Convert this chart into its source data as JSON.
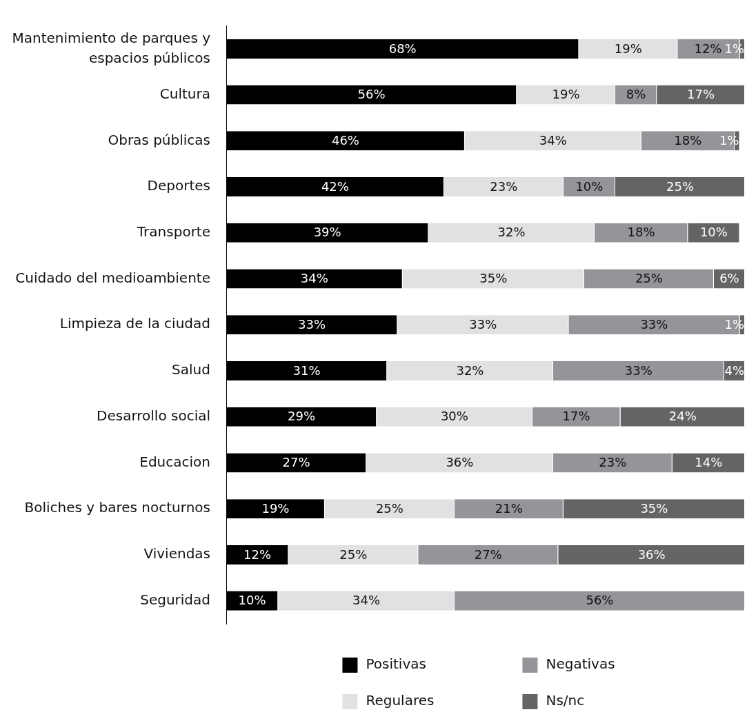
{
  "chart_data": {
    "type": "bar",
    "orientation": "horizontal",
    "stacked": true,
    "categories": [
      "Mantenimiento de parques y espacios públicos",
      "Cultura",
      "Obras públicas",
      "Deportes",
      "Transporte",
      "Cuidado del medioambiente",
      "Limpieza de la ciudad",
      "Salud",
      "Desarrollo social",
      "Educacion",
      "Boliches y bares nocturnos",
      "Viviendas",
      "Seguridad"
    ],
    "series": [
      {
        "name": "Positivas",
        "color": "#000000",
        "values": [
          68,
          56,
          46,
          42,
          39,
          34,
          33,
          31,
          29,
          27,
          19,
          12,
          10
        ],
        "value_labels": [
          "68%",
          "56%",
          "46%",
          "42%",
          "39%",
          "34%",
          "33%",
          "31%",
          "29%",
          "27%",
          "19%",
          "12%",
          "10%"
        ]
      },
      {
        "name": "Regulares",
        "color": "#e0e1e3",
        "values": [
          19,
          19,
          34,
          23,
          32,
          35,
          33,
          32,
          30,
          36,
          25,
          25,
          34
        ],
        "value_labels": [
          "19%",
          "19%",
          "34%",
          "23%",
          "32%",
          "35%",
          "33%",
          "32%",
          "30%",
          "36%",
          "25%",
          "25%",
          "34%"
        ]
      },
      {
        "name": "Negativas",
        "color": "#939598",
        "values": [
          12,
          8,
          18,
          10,
          18,
          25,
          33,
          33,
          17,
          23,
          21,
          27,
          56
        ],
        "value_labels": [
          "12%",
          "8%",
          "18%",
          "10%",
          "18%",
          "25%",
          "33%",
          "33%",
          "17%",
          "23%",
          "21%",
          "27%",
          "56%"
        ]
      },
      {
        "name": "Ns/nc",
        "color": "#636466",
        "values": [
          1,
          17,
          1,
          25,
          10,
          6,
          1,
          4,
          24,
          14,
          35,
          36,
          null
        ],
        "value_labels": [
          "1%",
          "17%",
          "1%",
          "25%",
          "10%",
          "6%",
          "1%",
          "4%",
          "24%",
          "14%",
          "35%",
          "36%",
          null
        ]
      }
    ],
    "xlim": [
      0,
      100
    ],
    "tick_labels": "y",
    "legend": "bottom"
  }
}
